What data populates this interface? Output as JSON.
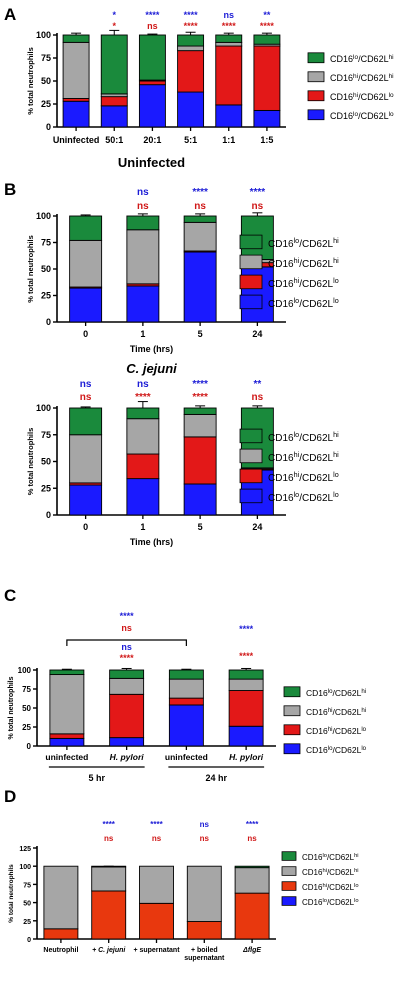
{
  "figure": {
    "series_colors": {
      "green": "#1a8a3c",
      "gray": "#a6a6a6",
      "red": "#e31818",
      "blue": "#1a1aff",
      "orange_red": "#e8380e"
    },
    "sig_colors": {
      "blue": "#1c1cd6",
      "red": "#d01818"
    }
  },
  "chart_data": [
    {
      "panel": "A",
      "type": "bar",
      "stacked": true,
      "title": "",
      "ylabel": "% total neutrophils",
      "xlabel": "",
      "ylim": [
        0,
        100
      ],
      "yticks": [
        "0",
        "25",
        "50",
        "75",
        "100"
      ],
      "categories": [
        "Uninfected",
        "50:1",
        "20:1",
        "5:1",
        "1:1",
        "1:5"
      ],
      "series": [
        {
          "name": "CD16lo/CD62Llo",
          "color": "blue",
          "values": [
            28,
            23,
            46,
            38,
            24,
            18
          ]
        },
        {
          "name": "CD16hi/CD62Llo",
          "color": "red",
          "values": [
            3,
            10,
            4,
            45,
            64,
            70
          ]
        },
        {
          "name": "CD16hi/CD62Lhi",
          "color": "gray",
          "values": [
            61,
            3,
            1,
            5,
            4,
            2
          ]
        },
        {
          "name": "CD16lo/CD62Lhi",
          "color": "green",
          "values": [
            8,
            64,
            49,
            12,
            8,
            10
          ]
        }
      ],
      "errors": [
        [
          2,
          2,
          1,
          2,
          1,
          1
        ],
        [
          1,
          2,
          1,
          3,
          3,
          3
        ],
        [
          2,
          2,
          1,
          2,
          1,
          1
        ],
        [
          2,
          5,
          1,
          3,
          2,
          2
        ]
      ],
      "sig_top": [
        "",
        "*",
        "****",
        "****",
        "ns",
        "**"
      ],
      "sig_bottom": [
        "",
        "*",
        "ns",
        "****",
        "****",
        "****"
      ],
      "legend": [
        {
          "base": "CD16",
          "sup1": "lo",
          "mid": "/CD62L",
          "sup2": "hi",
          "color": "green"
        },
        {
          "base": "CD16",
          "sup1": "hi",
          "mid": "/CD62L",
          "sup2": "hi",
          "color": "gray"
        },
        {
          "base": "CD16",
          "sup1": "hi",
          "mid": "/CD62L",
          "sup2": "lo",
          "color": "red"
        },
        {
          "base": "CD16",
          "sup1": "lo",
          "mid": "/CD62L",
          "sup2": "lo",
          "color": "blue"
        }
      ]
    },
    {
      "panel": "B",
      "type": "bar",
      "stacked": true,
      "title": "Uninfected",
      "ylabel": "% total neutrophils",
      "xlabel": "Time (hrs)",
      "ylim": [
        0,
        100
      ],
      "yticks": [
        "0",
        "25",
        "50",
        "75",
        "100"
      ],
      "categories": [
        "0",
        "1",
        "5",
        "24"
      ],
      "series": [
        {
          "name": "CD16lo/CD62Llo",
          "color": "blue",
          "values": [
            32,
            34,
            66,
            52
          ]
        },
        {
          "name": "CD16hi/CD62Llo",
          "color": "red",
          "values": [
            1,
            2,
            1,
            4
          ]
        },
        {
          "name": "CD16hi/CD62Lhi",
          "color": "gray",
          "values": [
            44,
            51,
            27,
            3
          ]
        },
        {
          "name": "CD16lo/CD62Lhi",
          "color": "green",
          "values": [
            23,
            13,
            6,
            41
          ]
        }
      ],
      "errors": [
        [
          5,
          2,
          1,
          2
        ],
        [
          1,
          1,
          1,
          1
        ],
        [
          7,
          3,
          2,
          2
        ],
        [
          1,
          2,
          2,
          3
        ]
      ],
      "sig_top": [
        "",
        "ns",
        "****",
        "****"
      ],
      "sig_bottom": [
        "",
        "ns",
        "ns",
        "ns"
      ],
      "legend": [
        {
          "base": "CD16",
          "sup1": "lo",
          "mid": "/CD62L",
          "sup2": "hi",
          "color": "green"
        },
        {
          "base": "CD16",
          "sup1": "hi",
          "mid": "/CD62L",
          "sup2": "hi",
          "color": "gray"
        },
        {
          "base": "CD16",
          "sup1": "hi",
          "mid": "/CD62L",
          "sup2": "lo",
          "color": "red"
        },
        {
          "base": "CD16",
          "sup1": "lo",
          "mid": "/CD62L",
          "sup2": "lo",
          "color": "blue"
        }
      ]
    },
    {
      "panel": "B2",
      "type": "bar",
      "stacked": true,
      "title": "C. jejuni",
      "ylabel": "% total neutrophils",
      "xlabel": "Time (hrs)",
      "ylim": [
        0,
        100
      ],
      "yticks": [
        "0",
        "25",
        "50",
        "75",
        "100"
      ],
      "categories": [
        "0",
        "1",
        "5",
        "24"
      ],
      "series": [
        {
          "name": "CD16lo/CD62Llo",
          "color": "blue",
          "values": [
            28,
            34,
            29,
            42
          ]
        },
        {
          "name": "CD16hi/CD62Llo",
          "color": "red",
          "values": [
            2,
            23,
            44,
            1
          ]
        },
        {
          "name": "CD16hi/CD62Lhi",
          "color": "gray",
          "values": [
            45,
            33,
            21,
            1
          ]
        },
        {
          "name": "CD16lo/CD62Lhi",
          "color": "green",
          "values": [
            25,
            10,
            6,
            56
          ]
        }
      ],
      "errors": [
        [
          2,
          5,
          3,
          1
        ],
        [
          1,
          8,
          4,
          1
        ],
        [
          2,
          5,
          3,
          1
        ],
        [
          1,
          6,
          2,
          2
        ]
      ],
      "sig_top": [
        "ns",
        "ns",
        "****",
        "**"
      ],
      "sig_bottom": [
        "ns",
        "****",
        "****",
        "ns"
      ],
      "legend": [
        {
          "base": "CD16",
          "sup1": "lo",
          "mid": "/CD62L",
          "sup2": "hi",
          "color": "green"
        },
        {
          "base": "CD16",
          "sup1": "hi",
          "mid": "/CD62L",
          "sup2": "hi",
          "color": "gray"
        },
        {
          "base": "CD16",
          "sup1": "hi",
          "mid": "/CD62L",
          "sup2": "lo",
          "color": "red"
        },
        {
          "base": "CD16",
          "sup1": "lo",
          "mid": "/CD62L",
          "sup2": "lo",
          "color": "blue"
        }
      ]
    },
    {
      "panel": "C",
      "type": "bar",
      "stacked": true,
      "title": "",
      "ylabel": "% total neutrophils",
      "xlabel": "",
      "ylim": [
        0,
        100
      ],
      "yticks": [
        "0",
        "25",
        "50",
        "75",
        "100"
      ],
      "categories": [
        "uninfected",
        "H. pylori",
        "uninfected",
        "H. pylori"
      ],
      "group_labels": [
        "5 hr",
        "24 hr"
      ],
      "series": [
        {
          "name": "CD16lo/CD62Llo",
          "color": "blue",
          "values": [
            10,
            11,
            54,
            26
          ]
        },
        {
          "name": "CD16hi/CD62Llo",
          "color": "red",
          "values": [
            6,
            57,
            9,
            47
          ]
        },
        {
          "name": "CD16hi/CD62Lhi",
          "color": "gray",
          "values": [
            78,
            21,
            25,
            15
          ]
        },
        {
          "name": "CD16lo/CD62Lhi",
          "color": "green",
          "values": [
            6,
            11,
            12,
            12
          ]
        }
      ],
      "errors": [
        [
          2,
          1,
          1,
          9
        ],
        [
          1,
          1,
          1,
          8
        ],
        [
          2,
          2,
          1,
          3
        ],
        [
          1,
          2,
          1,
          2
        ]
      ],
      "sig_top": [
        "",
        "",
        "",
        "****"
      ],
      "sig_bottom": [
        "",
        "****",
        "",
        "****"
      ],
      "sig_mid": [
        "",
        "ns",
        "",
        ""
      ],
      "bracket": {
        "from": 0,
        "to": 2,
        "labels": [
          "****",
          "ns"
        ]
      },
      "legend": [
        {
          "base": "CD16",
          "sup1": "lo",
          "mid": "/CD62L",
          "sup2": "hi",
          "color": "green"
        },
        {
          "base": "CD16",
          "sup1": "hi",
          "mid": "/CD62L",
          "sup2": "hi",
          "color": "gray"
        },
        {
          "base": "CD16",
          "sup1": "hi",
          "mid": "/CD62L",
          "sup2": "lo",
          "color": "red"
        },
        {
          "base": "CD16",
          "sup1": "lo",
          "mid": "/CD62L",
          "sup2": "lo",
          "color": "blue"
        }
      ]
    },
    {
      "panel": "D",
      "type": "bar",
      "stacked": true,
      "title": "",
      "ylabel": "% total neutrophils",
      "xlabel": "",
      "ylim": [
        0,
        125
      ],
      "yticks": [
        "0",
        "25",
        "50",
        "75",
        "100",
        "125"
      ],
      "categories": [
        "Neutrophil",
        "+ C. jejuni",
        "+ supernatant",
        "+ boiled supernatant",
        "ΔflgE"
      ],
      "series": [
        {
          "name": "CD16lo/CD62Llo",
          "color": "blue",
          "values": [
            0,
            0,
            0,
            0,
            0
          ]
        },
        {
          "name": "CD16hi/CD62Llo",
          "color": "orange_red",
          "values": [
            14,
            66,
            49,
            24,
            63
          ]
        },
        {
          "name": "CD16hi/CD62Lhi",
          "color": "gray",
          "values": [
            86,
            33,
            51,
            76,
            35
          ]
        },
        {
          "name": "CD16lo/CD62Lhi",
          "color": "green",
          "values": [
            0,
            1,
            0,
            0,
            2
          ]
        }
      ],
      "errors": [
        [
          0,
          0,
          0,
          12,
          0
        ],
        [
          0,
          1,
          0,
          10,
          1
        ],
        [
          0,
          1,
          0,
          0,
          1
        ],
        [
          0,
          0,
          0,
          0,
          0
        ]
      ],
      "sig_top": [
        "",
        "****",
        "****",
        "ns",
        "****"
      ],
      "sig_bottom": [
        "",
        "ns",
        "ns",
        "ns",
        "ns"
      ],
      "legend": [
        {
          "base": "CD16",
          "sup1": "lo",
          "mid": "/CD62L",
          "sup2": "hi",
          "color": "green"
        },
        {
          "base": "CD16",
          "sup1": "hi",
          "mid": "/CD62L",
          "sup2": "hi",
          "color": "gray"
        },
        {
          "base": "CD16",
          "sup1": "hi",
          "mid": "/CD62L",
          "sup2": "lo",
          "color": "orange_red"
        },
        {
          "base": "CD16",
          "sup1": "lo",
          "mid": "/CD62L",
          "sup2": "lo",
          "color": "blue"
        }
      ]
    }
  ]
}
